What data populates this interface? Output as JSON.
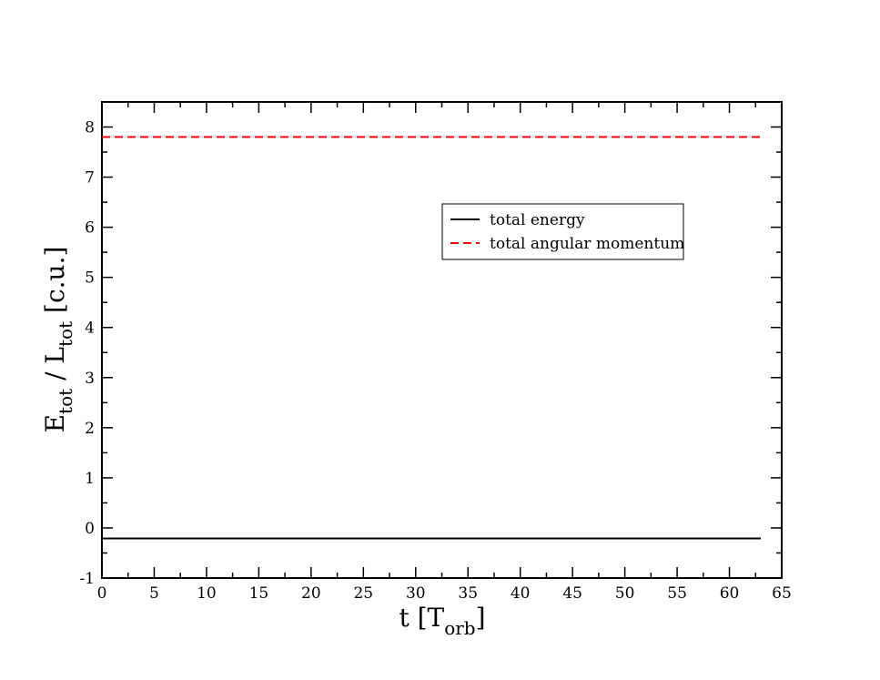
{
  "chart_data": {
    "type": "line",
    "xlabel": {
      "main": "t [T",
      "sub": "orb",
      "tail": "]"
    },
    "ylabel": {
      "e": "E",
      "e_sub": "tot",
      "sep": " / L",
      "l_sub": "tot",
      "unit": " [c.u.]"
    },
    "xlim": [
      0,
      65
    ],
    "ylim": [
      -1,
      8.5
    ],
    "x_ticks": [
      0,
      5,
      10,
      15,
      20,
      25,
      30,
      35,
      40,
      45,
      50,
      55,
      60,
      65
    ],
    "y_ticks": [
      -1,
      0,
      1,
      2,
      3,
      4,
      5,
      6,
      7,
      8
    ],
    "x_minor_step": 2.5,
    "y_minor_step": 0.5,
    "grid": false,
    "legend_position": "upper-right",
    "series": [
      {
        "name": "total energy",
        "color": "#000000",
        "dash": "solid",
        "x": [
          0,
          63
        ],
        "y": [
          -0.21,
          -0.21
        ]
      },
      {
        "name": "total angular momentum",
        "color": "#ff0000",
        "dash": "dashed",
        "x": [
          0,
          63
        ],
        "y": [
          7.8,
          7.8
        ]
      }
    ]
  }
}
